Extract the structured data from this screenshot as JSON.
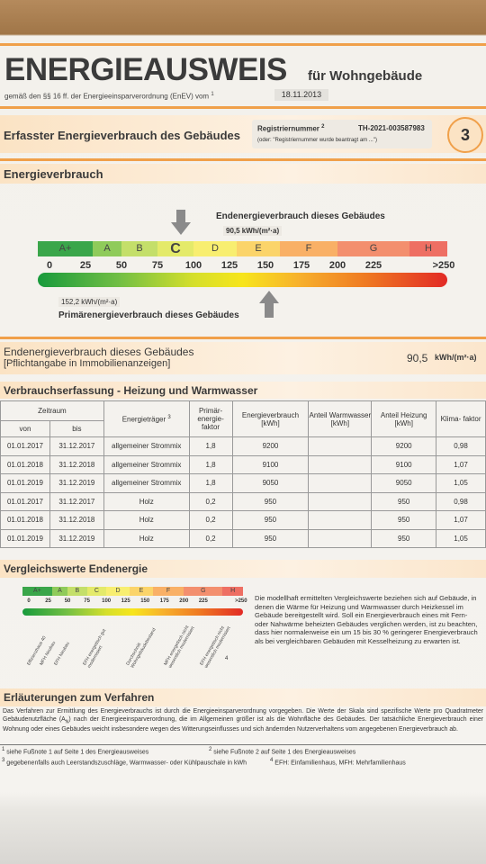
{
  "header": {
    "title": "ENERGIEAUSWEIS",
    "subtitle": "für Wohngebäude",
    "basis": "gemäß den §§ 16 ff. der Energieeinsparverordnung (EnEV) vom",
    "basis_note": "1",
    "date": "18.11.2013"
  },
  "section": {
    "title": "Erfasster Energieverbrauch des Gebäudes",
    "reg_label": "Registriernummer",
    "reg_note": "2",
    "reg_number": "TH-2021-003587983",
    "reg_alt": "(oder: \"Registriernummer wurde beantragt am ...\")",
    "page": "3"
  },
  "consumption": {
    "title": "Energieverbrauch",
    "final_label": "Endenergieverbrauch dieses Gebäudes",
    "final_value": "90,5 kWh/(m²·a)",
    "classes": [
      "A+",
      "A",
      "B",
      "C",
      "D",
      "E",
      "F",
      "G",
      "H"
    ],
    "scale": [
      0,
      25,
      50,
      75,
      100,
      125,
      150,
      175,
      200,
      225,
      ">250"
    ],
    "primary_value": "152,2 kWh/(m²·a)",
    "primary_label": "Primärenergieverbrauch dieses Gebäudes"
  },
  "summary": {
    "note": "[Pflichtangabe in Immobilienanzeigen]",
    "value": "90,5",
    "unit": "kWh/(m²·a)"
  },
  "table": {
    "title": "Verbrauchserfassung - Heizung und Warmwasser",
    "period": "Zeitraum",
    "headers": [
      "von",
      "bis",
      "Energieträger",
      "Primär- energie- faktor",
      "Energieverbrauch [kWh]",
      "Anteil Warmwasser [kWh]",
      "Anteil Heizung [kWh]",
      "Klima- faktor"
    ],
    "carrier_note": "3",
    "rows": [
      [
        "01.01.2017",
        "31.12.2017",
        "allgemeiner Strommix",
        "1,8",
        "9200",
        null,
        "9200",
        "0,98"
      ],
      [
        "01.01.2018",
        "31.12.2018",
        "allgemeiner Strommix",
        "1,8",
        "9100",
        null,
        "9100",
        "1,07"
      ],
      [
        "01.01.2019",
        "31.12.2019",
        "allgemeiner Strommix",
        "1,8",
        "9050",
        null,
        "9050",
        "1,05"
      ],
      [
        "01.01.2017",
        "31.12.2017",
        "Holz",
        "0,2",
        "950",
        null,
        "950",
        "0,98"
      ],
      [
        "01.01.2018",
        "31.12.2018",
        "Holz",
        "0,2",
        "950",
        null,
        "950",
        "1,07"
      ],
      [
        "01.01.2019",
        "31.12.2019",
        "Holz",
        "0,2",
        "950",
        null,
        "950",
        "1,05"
      ]
    ]
  },
  "compare": {
    "title": "Vergleichswerte Endenergie",
    "references": [
      "Effizienzhaus 40",
      "MFH Neubau",
      "EFH Neubau",
      "EFH energetisch gut modernisiert",
      "Durchschnitt Wohngebäudebestand",
      "MFH energetisch nicht wesentlich modernisiert",
      "EFH energetisch nicht wesentlich modernisiert"
    ],
    "note_mark": "4",
    "text": "Die modellhaft ermittelten Vergleichswerte beziehen sich auf Gebäude, in denen die Wärme für Heizung und Warmwasser durch Heizkessel im Gebäude bereitgestellt wird. Soll ein Energieverbrauch eines mit Fern- oder Nahwärme beheizten Gebäudes verglichen werden, ist zu beachten, dass hier normalerweise ein um 15 bis 30 % geringerer Energieverbrauch als bei vergleichbaren Gebäuden mit Kesselheizung zu erwarten ist."
  },
  "procedure": {
    "title": "Erläuterungen zum Verfahren",
    "text": [
      "Das Verfahren zur Ermittlung des Energieverbrauchs ist durch die Energieeinsparverordnung vorgegeben. Die Werte der Skala sind spezifische Werte pro Quadratmeter Gebäudenutzfläche (A",
      "N",
      ") nach der Energieeinsparverordnung, die im Allgemeinen größer ist als die Wohnfläche des Gebäudes. Der tatsächliche Energieverbrauch einer Wohnung oder eines Gebäudes weicht insbesondere wegen des Witterungseinflusses und sich ändernden Nutzerverhaltens vom angegebenen Energieverbrauch ab."
    ]
  },
  "footnotes": [
    {
      "mark": "1",
      "text": "siehe Fußnote 1 auf Seite 1 des Energieausweises"
    },
    {
      "mark": "2",
      "text": "siehe Fußnote 2 auf Seite 1 des Energieausweises"
    },
    {
      "mark": "3",
      "text": "gegebenenfalls auch Leerstandszuschläge, Warmwasser- oder Kühlpauschale in kWh"
    },
    {
      "mark": "4",
      "text": "EFH: Einfamilienhaus, MFH: Mehrfamilienhaus"
    }
  ]
}
